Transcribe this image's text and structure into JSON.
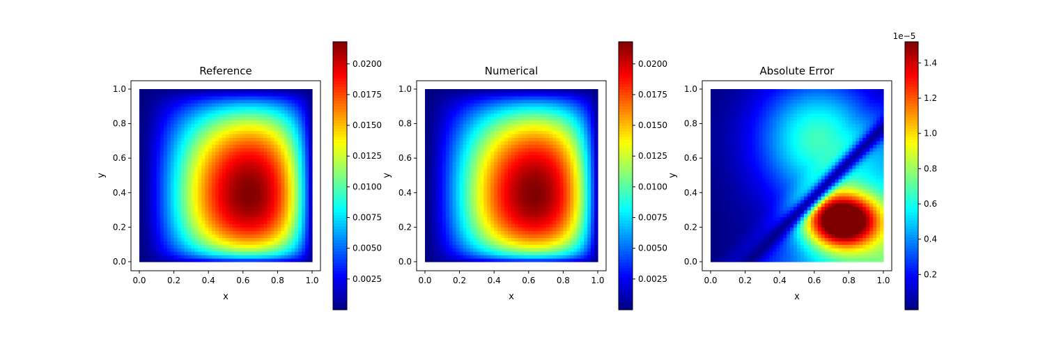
{
  "chart_data": [
    {
      "type": "heatmap",
      "title": "Reference",
      "xlabel": "x",
      "ylabel": "y",
      "xlim": [
        0,
        1
      ],
      "ylim": [
        0,
        1
      ],
      "xticks": [
        "0.0",
        "0.2",
        "0.4",
        "0.6",
        "0.8",
        "1.0"
      ],
      "yticks": [
        "0.0",
        "0.2",
        "0.4",
        "0.6",
        "0.8",
        "1.0"
      ],
      "colormap": "jet",
      "field": {
        "peak_x": 0.67,
        "peak_y": 0.35,
        "peak_value": 0.0215
      },
      "colorbar": {
        "min": 0.0,
        "max": 0.0218,
        "ticks": [
          0.0025,
          0.005,
          0.0075,
          0.01,
          0.0125,
          0.015,
          0.0175,
          0.02
        ],
        "tick_labels": [
          "0.0025",
          "0.0050",
          "0.0075",
          "0.0100",
          "0.0125",
          "0.0150",
          "0.0175",
          "0.0200"
        ],
        "offset_label": ""
      }
    },
    {
      "type": "heatmap",
      "title": "Numerical",
      "xlabel": "x",
      "ylabel": "y",
      "xlim": [
        0,
        1
      ],
      "ylim": [
        0,
        1
      ],
      "xticks": [
        "0.0",
        "0.2",
        "0.4",
        "0.6",
        "0.8",
        "1.0"
      ],
      "yticks": [
        "0.0",
        "0.2",
        "0.4",
        "0.6",
        "0.8",
        "1.0"
      ],
      "colormap": "jet",
      "field": {
        "peak_x": 0.67,
        "peak_y": 0.35,
        "peak_value": 0.0215
      },
      "colorbar": {
        "min": 0.0,
        "max": 0.0218,
        "ticks": [
          0.0025,
          0.005,
          0.0075,
          0.01,
          0.0125,
          0.015,
          0.0175,
          0.02
        ],
        "tick_labels": [
          "0.0025",
          "0.0050",
          "0.0075",
          "0.0100",
          "0.0125",
          "0.0150",
          "0.0175",
          "0.0200"
        ],
        "offset_label": ""
      }
    },
    {
      "type": "heatmap",
      "title": "Absolute Error",
      "xlabel": "x",
      "ylabel": "y",
      "xlim": [
        0,
        1
      ],
      "ylim": [
        0,
        1
      ],
      "xticks": [
        "0.0",
        "0.2",
        "0.4",
        "0.6",
        "0.8",
        "1.0"
      ],
      "yticks": [
        "0.0",
        "0.2",
        "0.4",
        "0.6",
        "0.8",
        "1.0"
      ],
      "colormap": "jet",
      "field": {
        "peak_x": 0.76,
        "peak_y": 0.24,
        "peak_value": 1.5
      },
      "colorbar": {
        "min": 0.0,
        "max": 1.52,
        "ticks": [
          0.2,
          0.4,
          0.6,
          0.8,
          1.0,
          1.2,
          1.4
        ],
        "tick_labels": [
          "0.2",
          "0.4",
          "0.6",
          "0.8",
          "1.0",
          "1.2",
          "1.4"
        ],
        "offset_label": "1e−5"
      }
    }
  ]
}
